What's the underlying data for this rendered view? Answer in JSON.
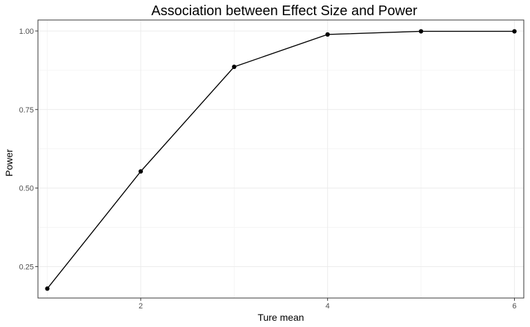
{
  "chart_data": {
    "type": "line",
    "title": "Association between Effect Size and Power",
    "xlabel": "Ture mean",
    "ylabel": "Power",
    "x": [
      1,
      2,
      3,
      4,
      5,
      6
    ],
    "series": [
      {
        "values": [
          0.18,
          0.553,
          0.886,
          0.989,
          0.999,
          0.999
        ]
      }
    ],
    "xlim": [
      0.9,
      6.1
    ],
    "ylim": [
      0.15,
      1.035
    ],
    "x_ticks": [
      2,
      4,
      6
    ],
    "x_tick_labels": [
      "2",
      "4",
      "6"
    ],
    "y_ticks": [
      0.25,
      0.5,
      0.75,
      1.0
    ],
    "y_tick_labels": [
      "0.25",
      "0.50",
      "0.75",
      "1.00"
    ],
    "grid": true,
    "legend": "none",
    "colors": {
      "line": "#000000",
      "point": "#000000",
      "grid": "#ebebeb",
      "panel_border": "#333333"
    }
  }
}
